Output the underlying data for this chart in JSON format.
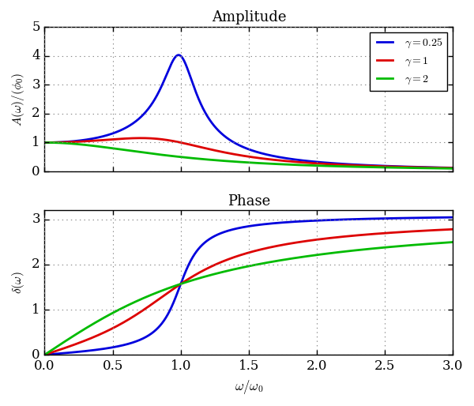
{
  "title_amplitude": "Amplitude",
  "title_phase": "Phase",
  "xlabel": "$\\omega/\\omega_0$",
  "ylabel_amplitude": "$A(\\omega)/(\\phi_0)$",
  "ylabel_phase": "$\\delta(\\omega)$",
  "gammas": [
    0.25,
    1,
    2
  ],
  "gamma_labels": [
    "$\\gamma = 0.25$",
    "$\\gamma = 1$",
    "$\\gamma = 2$"
  ],
  "colors": [
    "#0000dd",
    "#dd0000",
    "#00bb00"
  ],
  "xlim": [
    0,
    3
  ],
  "ylim_amplitude": [
    0,
    5
  ],
  "ylim_phase": [
    0,
    3.2
  ],
  "xticks": [
    0,
    0.5,
    1,
    1.5,
    2,
    2.5,
    3
  ],
  "yticks_amplitude": [
    0,
    1,
    2,
    3,
    4,
    5
  ],
  "yticks_phase": [
    0,
    1,
    2,
    3
  ],
  "linewidth": 2.0,
  "background_color": "#ffffff",
  "figsize": [
    6.0,
    5.14
  ],
  "dpi": 100
}
